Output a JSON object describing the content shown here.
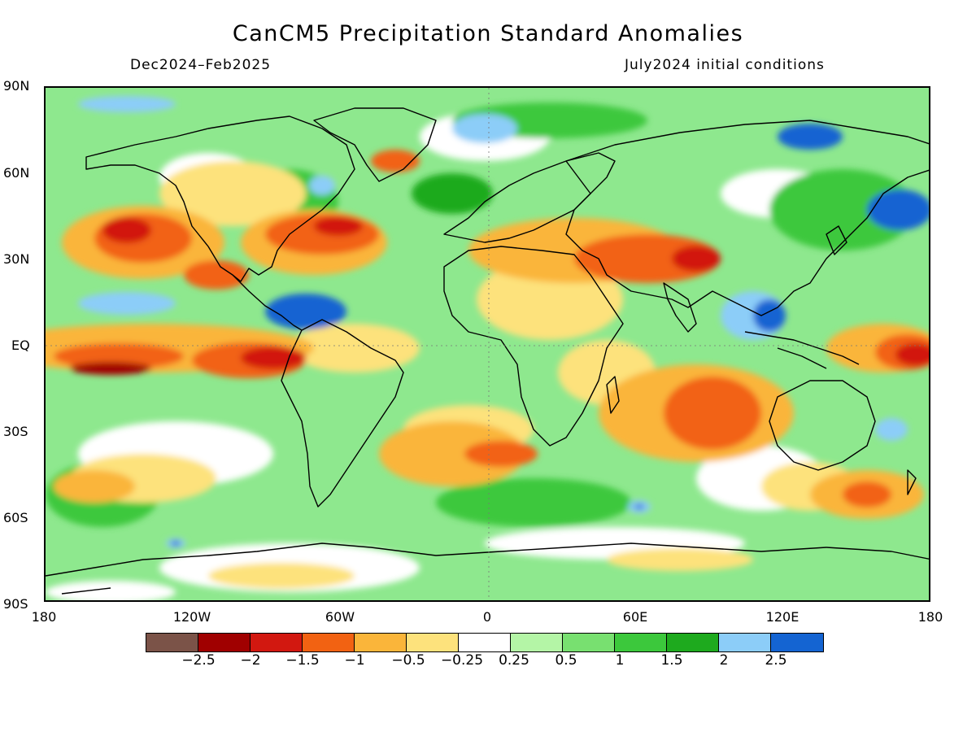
{
  "title": "CanCM5 Precipitation Standard Anomalies",
  "subtitle_left": "Dec2024–Feb2025",
  "subtitle_right": "July2024 initial conditions",
  "lat_labels": [
    "90N",
    "60N",
    "30N",
    "EQ",
    "30S",
    "60S",
    "90S"
  ],
  "lon_labels": [
    "180",
    "120W",
    "60W",
    "0",
    "60E",
    "120E",
    "180"
  ],
  "colorbar": {
    "colors": [
      "#7b5348",
      "#a00000",
      "#d21810",
      "#f26212",
      "#fab53a",
      "#fde27c",
      "#ffffff",
      "#b4f5a6",
      "#78e070",
      "#3cc83c",
      "#1eaa1e",
      "#8ccdf8",
      "#1464d2"
    ],
    "labels": [
      "−2.5",
      "−2",
      "−1.5",
      "−1",
      "−0.5",
      "−0.25",
      "0.25",
      "0.5",
      "1",
      "1.5",
      "2",
      "2.5"
    ]
  },
  "colors": {
    "background_field": "#8ee88e",
    "coastline": "#000000"
  },
  "chart_data": {
    "type": "heatmap",
    "variable": "Precipitation standard anomaly",
    "xlim": [
      -180,
      180
    ],
    "ylim": [
      -90,
      90
    ],
    "levels": [
      -2.5,
      -2,
      -1.5,
      -1,
      -0.5,
      -0.25,
      0.25,
      0.5,
      1,
      1.5,
      2,
      2.5
    ]
  }
}
